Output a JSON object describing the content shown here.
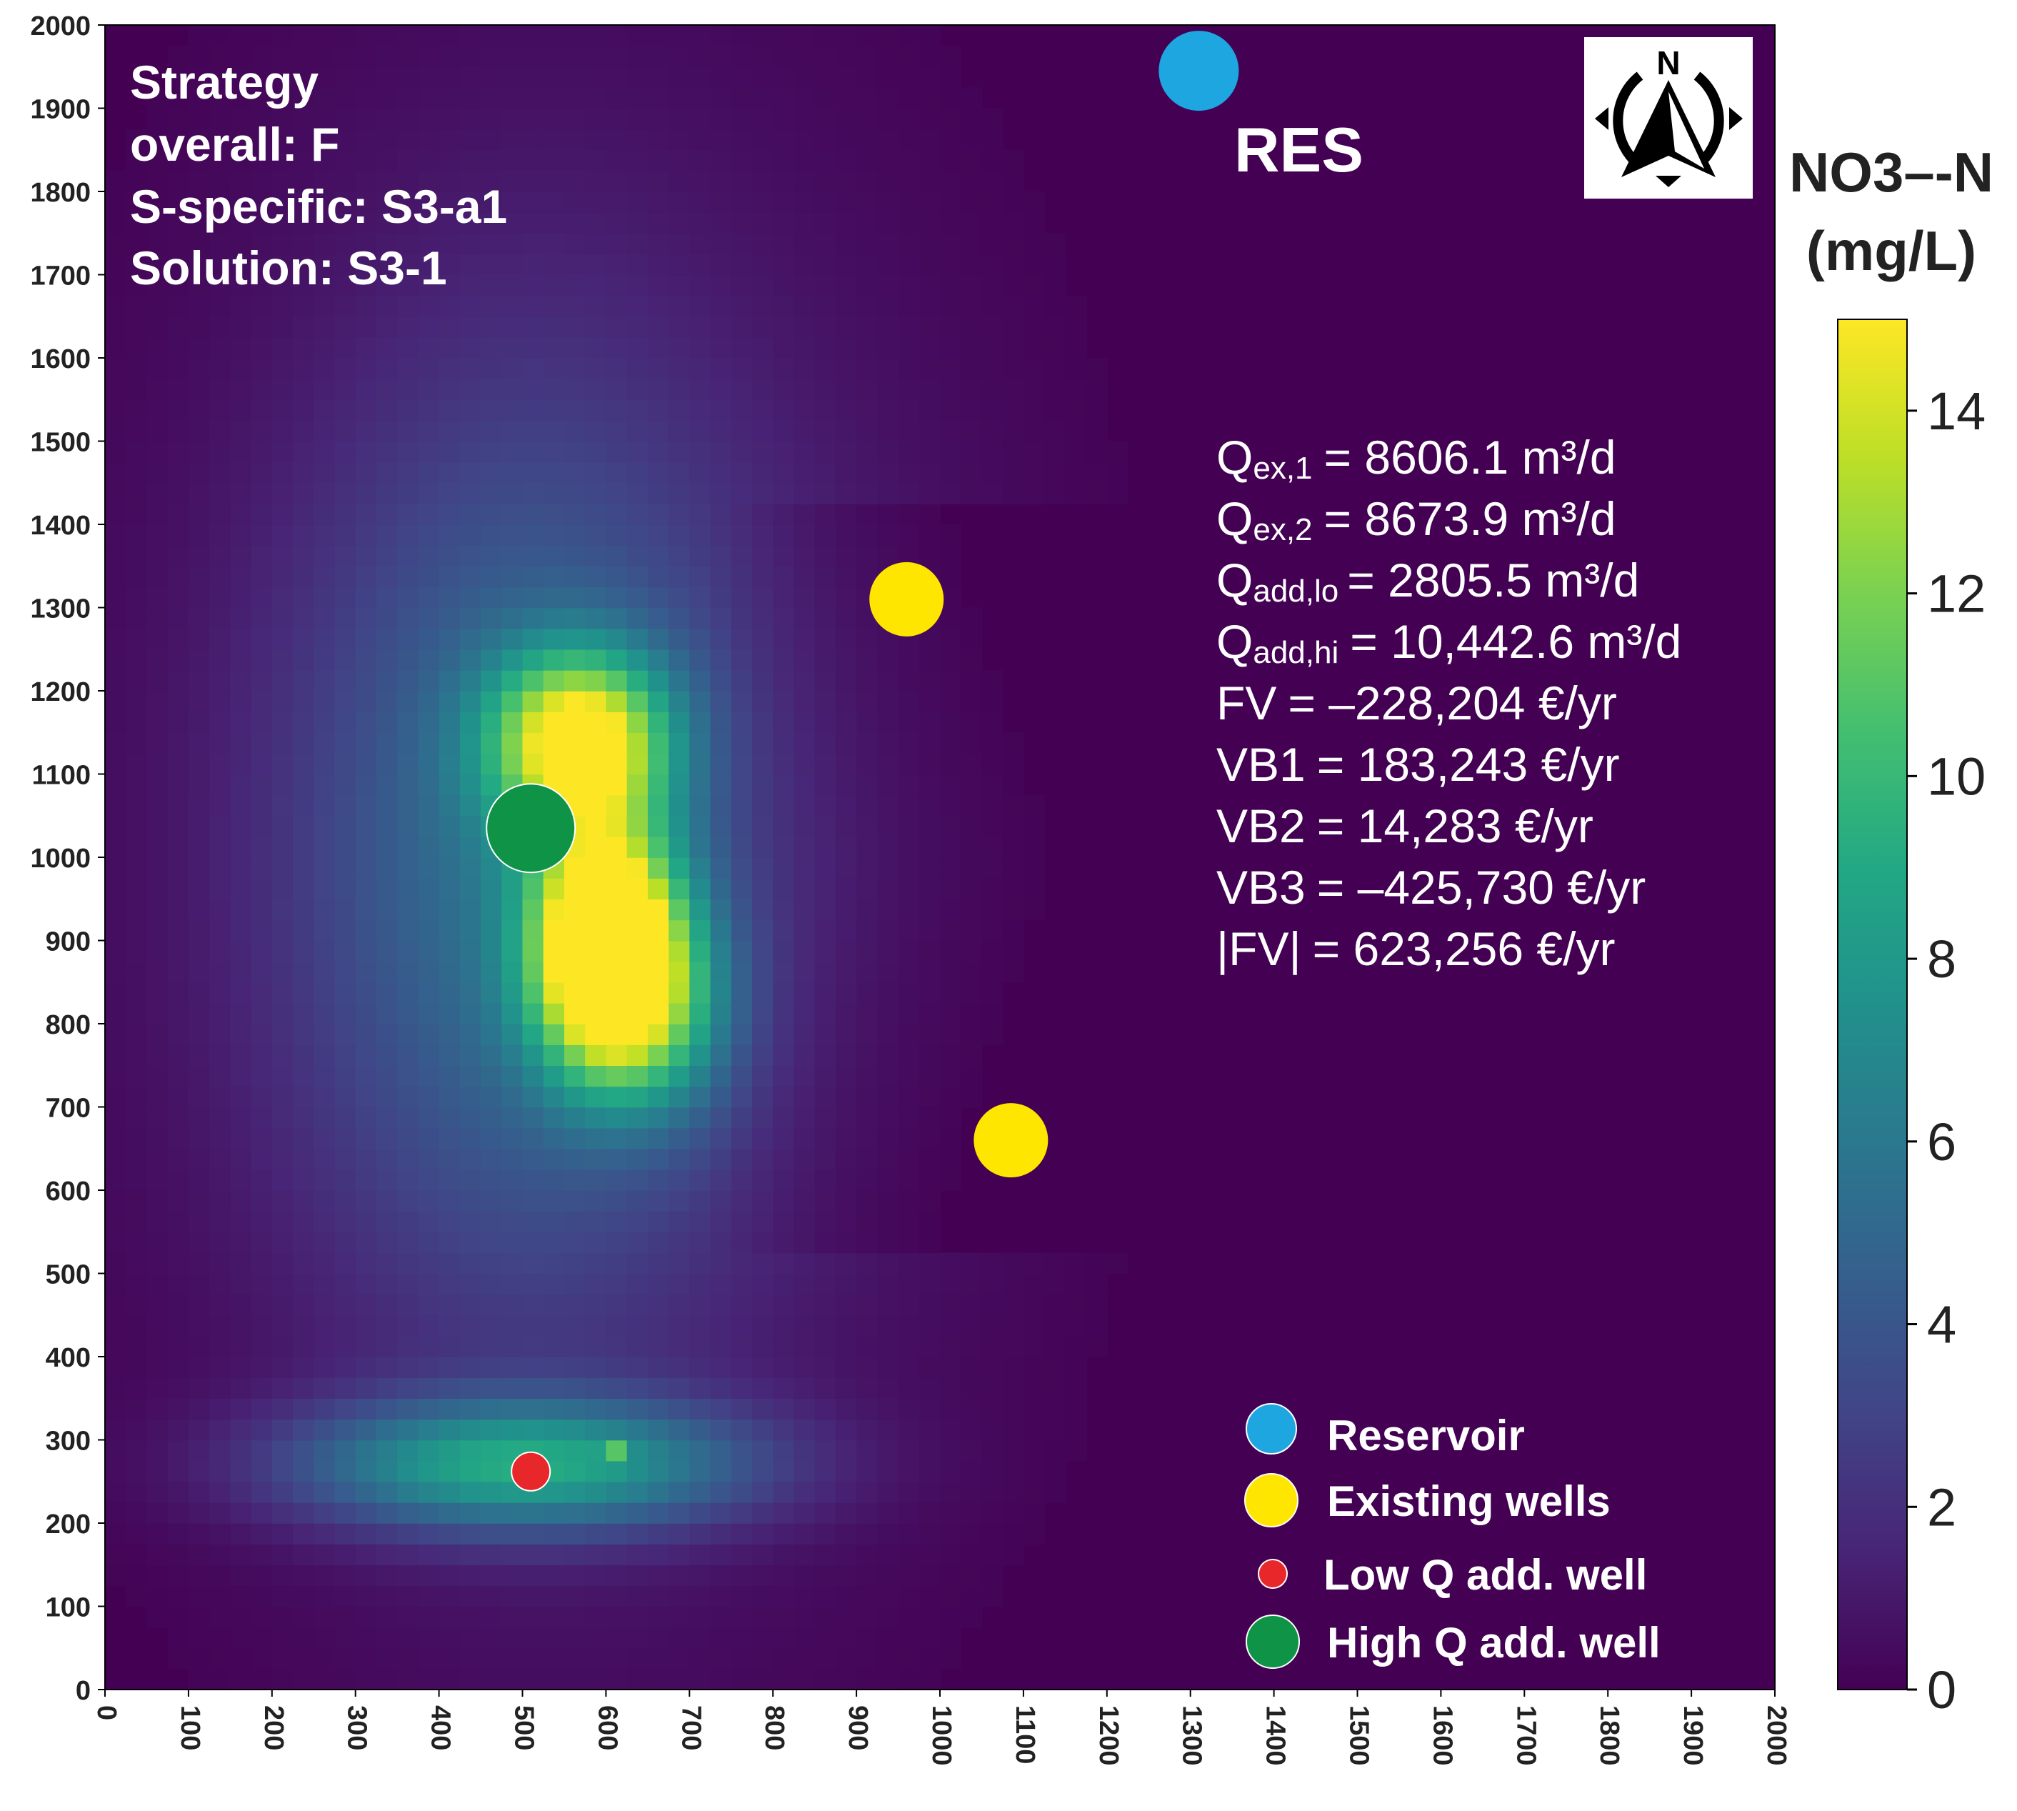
{
  "chart_data": {
    "type": "heatmap",
    "title": "",
    "xlabel": "",
    "ylabel": "",
    "xlim": [
      0,
      2000
    ],
    "ylim": [
      0,
      2000
    ],
    "x_ticks": [
      "0",
      "100",
      "200",
      "300",
      "400",
      "500",
      "600",
      "700",
      "800",
      "900",
      "1000",
      "1100",
      "1200",
      "1300",
      "1400",
      "1500",
      "1600",
      "1700",
      "1800",
      "1900",
      "2000"
    ],
    "y_ticks": [
      "0",
      "100",
      "200",
      "300",
      "400",
      "500",
      "600",
      "700",
      "800",
      "900",
      "1000",
      "1100",
      "1200",
      "1300",
      "1400",
      "1500",
      "1600",
      "1700",
      "1800",
      "1900",
      "2000"
    ],
    "colorbar": {
      "label_line1": "NO3–-N",
      "label_line2": "(mg/L)",
      "range": [
        0,
        15
      ],
      "ticks": [
        "0",
        "2",
        "4",
        "6",
        "8",
        "10",
        "12",
        "14"
      ],
      "colormap": "viridis"
    },
    "strategy_text": [
      "Strategy",
      "overall: F",
      "S-specific: S3-a1",
      "Solution: S3-1"
    ],
    "res_label": "RES",
    "compass_letter": "N",
    "results": [
      {
        "name": "Qex,1",
        "main": "Q",
        "sub": "ex,1",
        "value": "= 8606.1 m³/d"
      },
      {
        "name": "Qex,2",
        "main": "Q",
        "sub": "ex,2",
        "value": "= 8673.9 m³/d"
      },
      {
        "name": "Qadd,lo",
        "main": "Q",
        "sub": "add,lo",
        "value": "= 2805.5 m³/d"
      },
      {
        "name": "Qadd,hi",
        "main": "Q",
        "sub": "add,hi",
        "value": "= 10,442.6 m³/d"
      },
      {
        "name": "FV",
        "main": "FV",
        "sub": "",
        "value": "= –228,204 €/yr"
      },
      {
        "name": "VB1",
        "main": "VB1",
        "sub": "",
        "value": "= 183,243 €/yr"
      },
      {
        "name": "VB2",
        "main": "VB2",
        "sub": "",
        "value": "= 14,283 €/yr"
      },
      {
        "name": "VB3",
        "main": "VB3",
        "sub": "",
        "value": "= –425,730 €/yr"
      },
      {
        "name": "|FV|",
        "main": "|FV|",
        "sub": "",
        "value": "= 623,256 €/yr"
      }
    ],
    "points": [
      {
        "type": "reservoir",
        "label": "Reservoir",
        "x": 1310,
        "y": 1945,
        "color": "#1ea6e1"
      },
      {
        "type": "existing",
        "label": "Existing wells",
        "x": 960,
        "y": 1310,
        "color": "#ffe600"
      },
      {
        "type": "existing",
        "label": "Existing wells",
        "x": 1085,
        "y": 660,
        "color": "#ffe600"
      },
      {
        "type": "high",
        "label": "High Q add. well",
        "x": 510,
        "y": 1035,
        "color": "#0f9447"
      },
      {
        "type": "low",
        "label": "Low Q add. well",
        "x": 510,
        "y": 262,
        "color": "#e8272a"
      }
    ],
    "legend": {
      "position": "bottom-right",
      "entries": [
        {
          "label": "Reservoir",
          "color": "#1ea6e1"
        },
        {
          "label": "Existing wells",
          "color": "#ffe600"
        },
        {
          "label": "Low Q add. well",
          "color": "#e8272a"
        },
        {
          "label": "High Q add. well",
          "color": "#0f9447"
        }
      ]
    },
    "plume_sources": [
      {
        "x": 600,
        "y": 900,
        "sx": 60,
        "sy": 95,
        "peak": 14.6
      },
      {
        "x": 645,
        "y": 820,
        "sx": 75,
        "sy": 90,
        "peak": 6.5
      },
      {
        "x": 570,
        "y": 1140,
        "sx": 75,
        "sy": 75,
        "peak": 12.0
      },
      {
        "x": 500,
        "y": 1000,
        "sx": 190,
        "sy": 380,
        "peak": 4.0
      },
      {
        "x": 560,
        "y": 1000,
        "sx": 320,
        "sy": 560,
        "peak": 1.8
      },
      {
        "x": 500,
        "y": 270,
        "sx": 190,
        "sy": 55,
        "peak": 8.0
      },
      {
        "x": 610,
        "y": 285,
        "sx": 10,
        "sy": 10,
        "peak": 3.5
      }
    ]
  }
}
